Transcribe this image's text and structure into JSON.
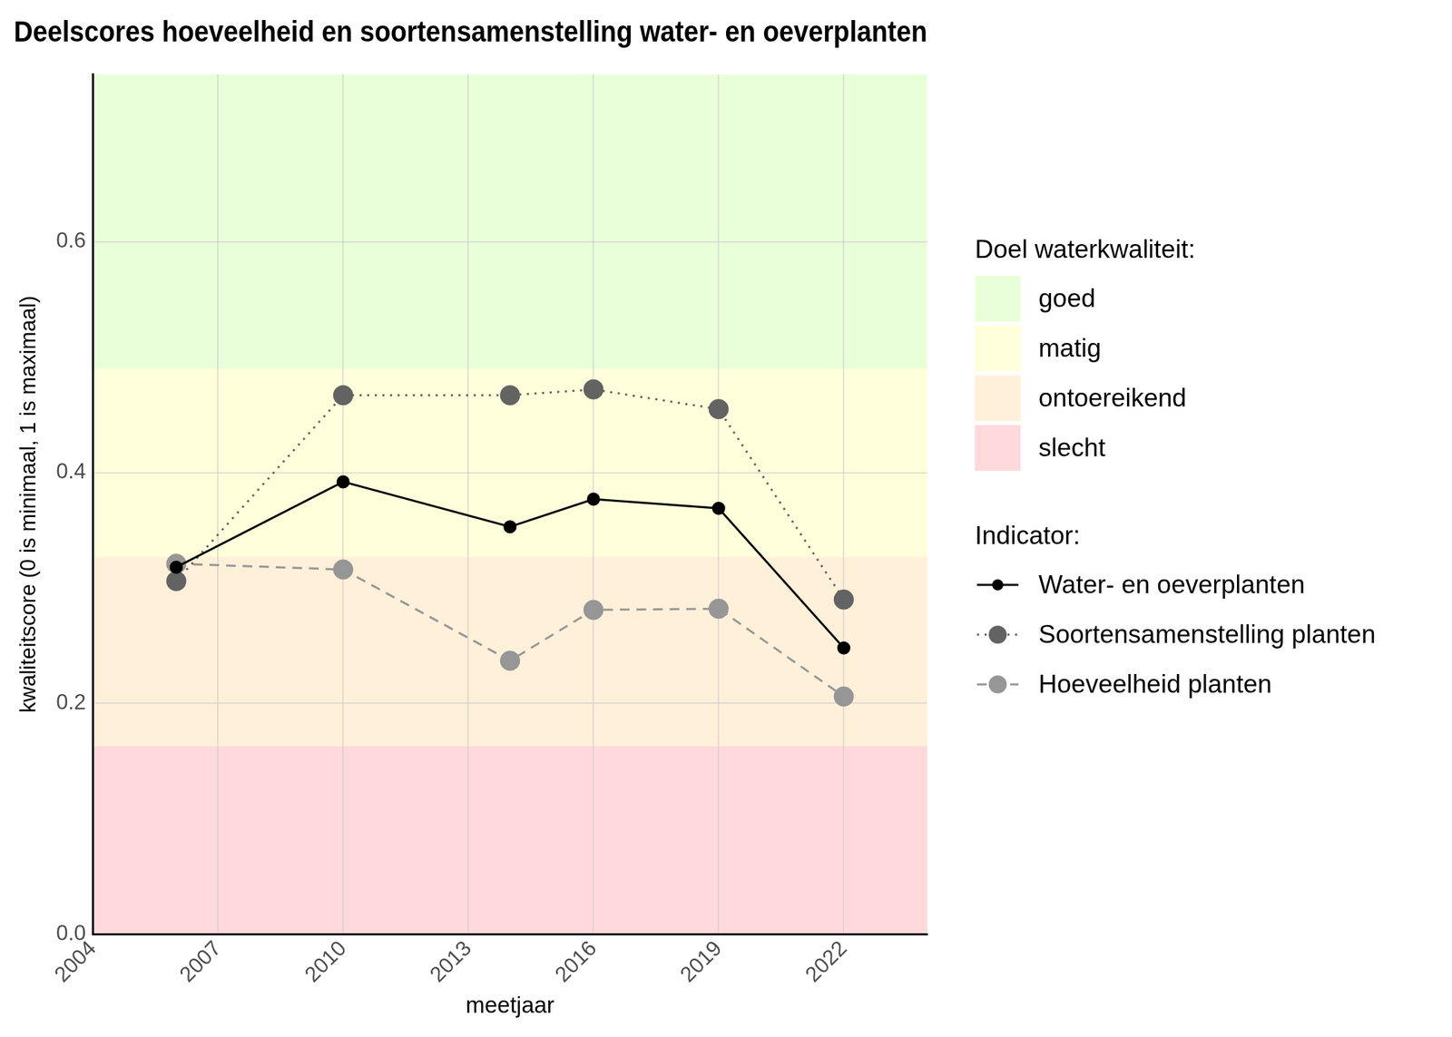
{
  "chart_data": {
    "type": "line",
    "title": "Deelscores hoeveelheid en soortensamenstelling water- en oeverplanten",
    "x_label": "meetjaar",
    "y_label": "kwaliteitscore (0 is minimaal, 1 is maximaal)",
    "x": [
      2006,
      2010,
      2014,
      2016,
      2019,
      2022
    ],
    "series": [
      {
        "name": "Water- en oeverplanten",
        "color": "#000000",
        "marker": "circle",
        "line_style": "solid",
        "values": [
          0.318,
          0.392,
          0.353,
          0.377,
          0.369,
          0.248
        ]
      },
      {
        "name": "Soortensamenstelling planten",
        "color": "#636363",
        "marker": "circle",
        "line_style": "dotted",
        "values": [
          0.306,
          0.467,
          0.467,
          0.472,
          0.455,
          0.29
        ]
      },
      {
        "name": "Hoeveelheid planten",
        "color": "#969696",
        "marker": "circle",
        "line_style": "dashed",
        "values": [
          0.321,
          0.316,
          0.237,
          0.281,
          0.282,
          0.206
        ]
      }
    ],
    "xlim": [
      2004,
      2024
    ],
    "xticks": [
      2004,
      2007,
      2010,
      2013,
      2016,
      2019,
      2022
    ],
    "ylim": [
      0,
      0.745
    ],
    "yticks": [
      {
        "value": 0,
        "label": "0.0"
      },
      0.2,
      0.4,
      0.6
    ],
    "grid": true,
    "legend": "right",
    "band_legend_title": "Doel waterkwaliteit:",
    "series_legend_title": "Indicator:",
    "bands": [
      {
        "name": "goed",
        "from": 0.49,
        "to": 0.745,
        "color": "#e9ffd9"
      },
      {
        "name": "matig",
        "from": 0.327,
        "to": 0.49,
        "color": "#ffffdb"
      },
      {
        "name": "ontoereikend",
        "from": 0.163,
        "to": 0.327,
        "color": "#fff0d9"
      },
      {
        "name": "slecht",
        "from": 0,
        "to": 0.163,
        "color": "#ffd9dc"
      }
    ]
  }
}
